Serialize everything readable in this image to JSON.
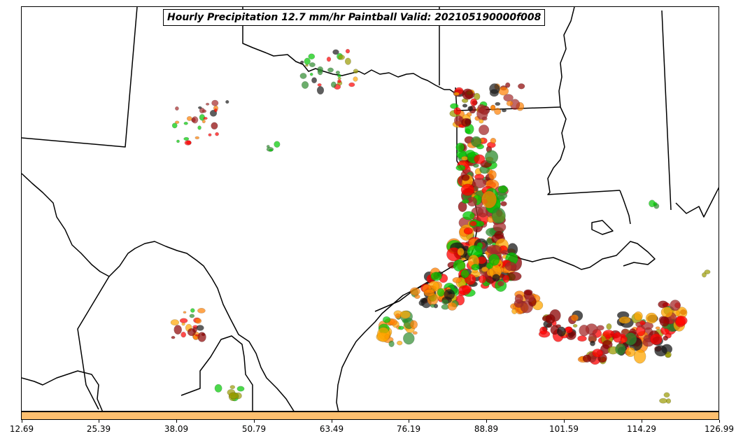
{
  "title": "Hourly Precipitation 12.7 mm/hr Paintball Valid: 202105190000f008",
  "colorbar": {
    "color": "#fdbf6f",
    "ticks": [
      "12.69",
      "25.39",
      "38.09",
      "50.79",
      "63.49",
      "76.19",
      "88.89",
      "101.59",
      "114.29",
      "126.99"
    ]
  },
  "member_colors": [
    "#ff0000",
    "#ff7f00",
    "#ffa500",
    "#00c800",
    "#2e8b2e",
    "#8b0000",
    "#a52a2a",
    "#9a9a00",
    "#1a1a1a",
    "#e83030"
  ],
  "map": {
    "region": "Texas / Gulf Coast",
    "boundary_color": "#000000",
    "background": "#ffffff"
  }
}
